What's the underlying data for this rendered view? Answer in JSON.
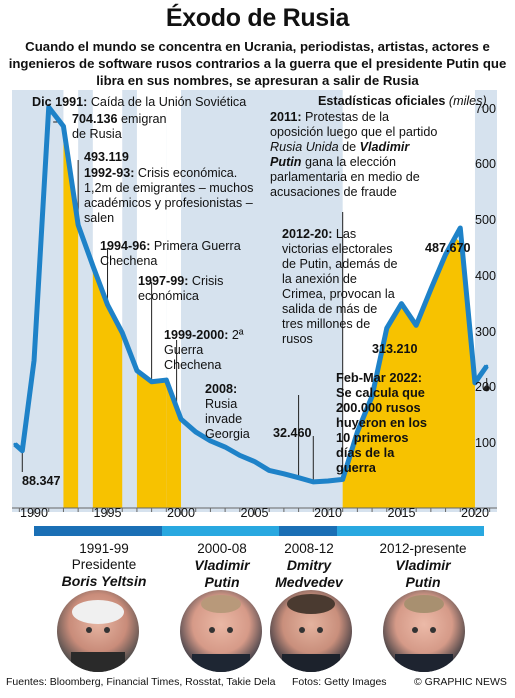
{
  "title": "Éxodo de Rusia",
  "subtitle": "Cuando el mundo se concentra en Ucrania, periodistas, artistas, actores e ingenieros de software rusos contrarios a la guerra que el presidente Putin que libra en sus nombres, se apresuran a salir de Rusia",
  "stats_label": "Estadísticas oficiales",
  "stats_unit": "(miles)",
  "colors": {
    "panel": "#d6e2ee",
    "line": "#1e82c8",
    "highlight": "#f7c200",
    "dark_blue": "#1a6fb5",
    "light_blue": "#29a8e0"
  },
  "chart_data": {
    "type": "line",
    "title": "Éxodo de Rusia",
    "ylabel": "Estadísticas oficiales (miles)",
    "xlim": [
      1988.5,
      2021.5
    ],
    "ylim": [
      0,
      735
    ],
    "x_ticks": [
      "1990",
      "1995",
      "2000",
      "2005",
      "2010",
      "2015",
      "2020"
    ],
    "y_ticks": [
      "100",
      "200",
      "300",
      "400",
      "500",
      "600",
      "700"
    ],
    "series": [
      {
        "x": [
          1988.7,
          1989.2,
          1990,
          1991,
          1992,
          1993,
          1994,
          1995,
          1996,
          1997,
          1998,
          1999,
          2000,
          2001,
          2002,
          2003,
          2004,
          2005,
          2006,
          2007,
          2008,
          2009,
          2010,
          2011,
          2012,
          2013,
          2014,
          2015,
          2016,
          2017,
          2018,
          2019,
          2020,
          2020.8
        ],
        "y": [
          100,
          88.347,
          250,
          704.136,
          670,
          493.119,
          420,
          350,
          300,
          232,
          212,
          215,
          145,
          122,
          106,
          95,
          80,
          69,
          53,
          47,
          40,
          32.46,
          34,
          37,
          122,
          186,
          308,
          352,
          313.21,
          378,
          440,
          487.67,
          210,
          240
        ]
      }
    ],
    "highlights": [
      [
        1992,
        1993
      ],
      [
        1994,
        1996
      ],
      [
        1997,
        1999
      ],
      [
        1999,
        2000
      ],
      [
        2011,
        2020
      ]
    ],
    "data_labels": [
      "88.347",
      "704.136",
      "493.119",
      "32.460",
      "313.210",
      "487.670"
    ]
  },
  "annotations": {
    "a1991_b": "Dic 1991:",
    "a1991": "Caída de la Unión Soviética",
    "a704": "emigran de Rusia",
    "a9293_b": "1992-93:",
    "a9293": "Crisis económica. 1,2m de emigrantes – muchos académicos y profesionistas – salen",
    "a9496_b": "1994-96:",
    "a9496": "Primera Guerra Chechena",
    "a9799_b": "1997-99:",
    "a9799": "Crisis económica",
    "a9900_b": "1999-2000:",
    "a9900": "2ª Guerra Chechena",
    "a2008_b": "2008:",
    "a2008": "Rusia invade Georgia",
    "a2011_b": "2011:",
    "a2011_1": "Protestas de la oposición luego que el partido",
    "a2011_party": "Rusia Unida",
    "a2011_2": "de",
    "a2011_name": "Vladimir Putin",
    "a2011_3": "gana la elección parlamentaria en medio de acusaciones de fraude",
    "a1220_b": "2012-20:",
    "a1220": "Las victorias electorales de Putin, además de la anexión de Crimea, provocan la salida de más de tres millones de rusos",
    "feb": "Feb-Mar 2022: Se calcula que 200.000 rusos huyeron en los 10 primeros días de la guerra"
  },
  "presidents": [
    {
      "term": "1991-99",
      "role": "Presidente",
      "name": "Boris Yeltsin"
    },
    {
      "term": "2000-08",
      "role": "Vladimir",
      "name": "Putin"
    },
    {
      "term": "2008-12",
      "role": "Dmitry",
      "name": "Medvedev"
    },
    {
      "term": "2012-presente",
      "role": "Vladimir",
      "name": "Putin"
    }
  ],
  "footer": {
    "sources": "Fuentes: Bloomberg, Financial Times, Rosstat, Takie Dela",
    "photos": "Fotos: Getty Images",
    "credit": "© GRAPHIC NEWS"
  }
}
